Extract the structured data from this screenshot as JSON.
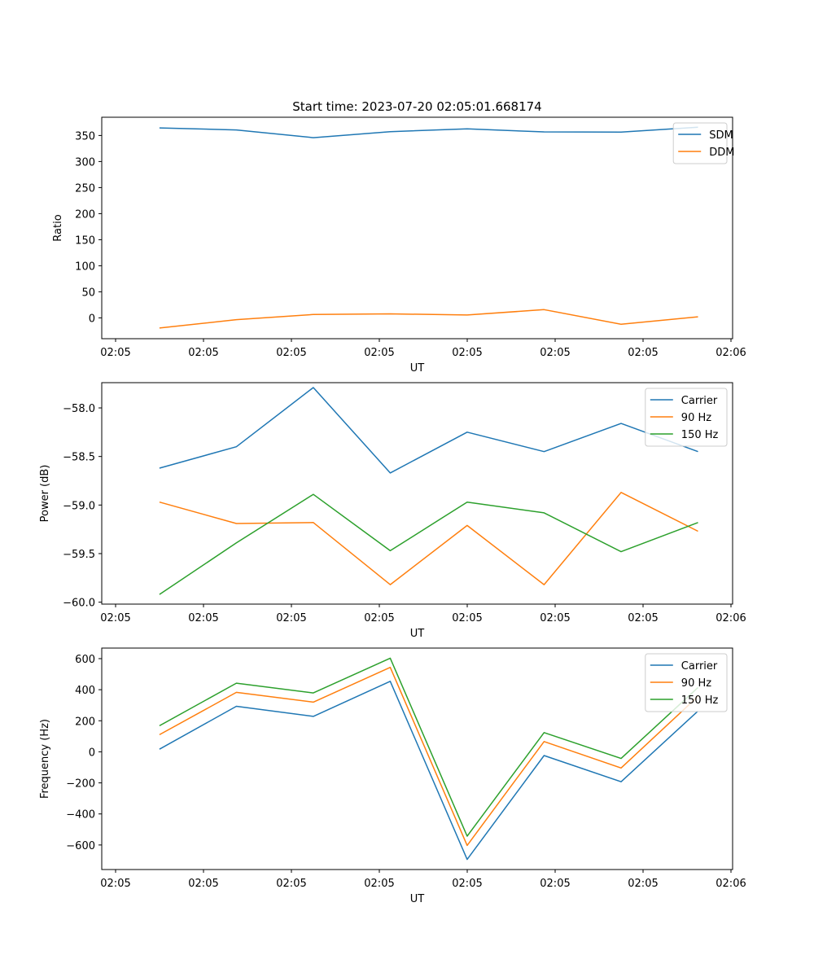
{
  "figure": {
    "title": "Start time: 2023-07-20 02:05:01.668174"
  },
  "chart_data": [
    {
      "type": "line",
      "title": "Start time: 2023-07-20 02:05:01.668174",
      "xlabel": "UT",
      "ylabel": "Ratio",
      "x_ticks": [
        "02:05",
        "02:05",
        "02:05",
        "02:05",
        "02:05",
        "02:05",
        "02:05",
        "02:06"
      ],
      "x": [
        1,
        2,
        3,
        4,
        5,
        6,
        7,
        8
      ],
      "xlim": [
        0.25,
        8.45
      ],
      "ylim": [
        -40.0,
        385.0
      ],
      "y_ticks": [
        0,
        50,
        100,
        150,
        200,
        250,
        300,
        350
      ],
      "y_tick_labels": [
        "0",
        "50",
        "100",
        "150",
        "200",
        "250",
        "300",
        "350"
      ],
      "legend_position": "top-right",
      "series": [
        {
          "name": "SDM",
          "color": "#1f77b4",
          "values": [
            364.5,
            360.6,
            345.8,
            357.4,
            362.6,
            356.9,
            356.5,
            365.8
          ]
        },
        {
          "name": "DDM",
          "color": "#ff7f0e",
          "values": [
            -19.5,
            -3.5,
            6.4,
            7.7,
            5.5,
            15.8,
            -12.4,
            2.1
          ]
        }
      ]
    },
    {
      "type": "line",
      "xlabel": "UT",
      "ylabel": "Power (dB)",
      "x_ticks": [
        "02:05",
        "02:05",
        "02:05",
        "02:05",
        "02:05",
        "02:05",
        "02:05",
        "02:06"
      ],
      "x": [
        1,
        2,
        3,
        4,
        5,
        6,
        7,
        8
      ],
      "xlim": [
        0.25,
        8.45
      ],
      "ylim": [
        -60.02,
        -57.74
      ],
      "y_ticks": [
        -60.0,
        -59.5,
        -59.0,
        -58.5,
        -58.0
      ],
      "y_tick_labels": [
        "−60.0",
        "−59.5",
        "−59.0",
        "−58.5",
        "−58.0"
      ],
      "legend_position": "top-right",
      "series": [
        {
          "name": "Carrier",
          "color": "#1f77b4",
          "values": [
            -58.62,
            -58.4,
            -57.79,
            -58.67,
            -58.25,
            -58.45,
            -58.16,
            -58.45
          ]
        },
        {
          "name": "90 Hz",
          "color": "#ff7f0e",
          "values": [
            -58.97,
            -59.19,
            -59.18,
            -59.82,
            -59.21,
            -59.82,
            -58.87,
            -59.27
          ]
        },
        {
          "name": "150 Hz",
          "color": "#2ca02c",
          "values": [
            -59.92,
            -59.39,
            -58.89,
            -59.47,
            -58.97,
            -59.08,
            -59.48,
            -59.18
          ]
        }
      ]
    },
    {
      "type": "line",
      "xlabel": "UT",
      "ylabel": "Frequency (Hz)",
      "x_ticks": [
        "02:05",
        "02:05",
        "02:05",
        "02:05",
        "02:05",
        "02:05",
        "02:05",
        "02:06"
      ],
      "x": [
        1,
        2,
        3,
        4,
        5,
        6,
        7,
        8
      ],
      "xlim": [
        0.25,
        8.45
      ],
      "ylim": [
        -758,
        668
      ],
      "y_ticks": [
        -600,
        -400,
        -200,
        0,
        200,
        400,
        600
      ],
      "y_tick_labels": [
        "−600",
        "−400",
        "−200",
        "0",
        "200",
        "400",
        "600"
      ],
      "legend_position": "top-right",
      "series": [
        {
          "name": "Carrier",
          "color": "#1f77b4",
          "values": [
            17,
            293,
            228,
            454,
            -693,
            -24,
            -193,
            263
          ]
        },
        {
          "name": "90 Hz",
          "color": "#ff7f0e",
          "values": [
            110,
            383,
            320,
            544,
            -603,
            66,
            -104,
            357
          ]
        },
        {
          "name": "150 Hz",
          "color": "#2ca02c",
          "values": [
            168,
            442,
            379,
            603,
            -543,
            124,
            -43,
            414
          ]
        }
      ]
    }
  ]
}
